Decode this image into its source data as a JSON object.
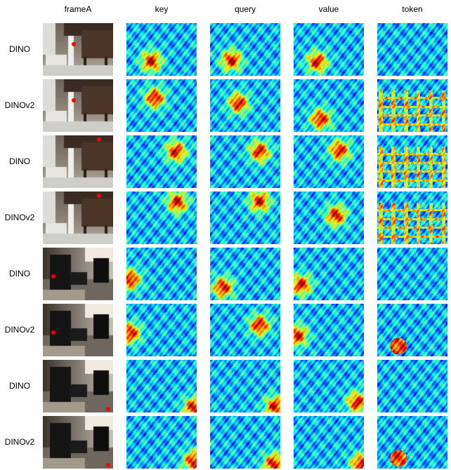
{
  "columns": [
    "frameA",
    "key",
    "query",
    "value",
    "token"
  ],
  "rows": [
    {
      "label": "DINO",
      "scene": "kitchen",
      "point": {
        "u": 0.44,
        "v": 0.4
      },
      "hot": [
        [
          0.35,
          0.72
        ],
        [
          0.3,
          0.7
        ],
        [
          0.33,
          0.73
        ]
      ],
      "tok": "uniform"
    },
    {
      "label": "DINOv2",
      "scene": "kitchen",
      "point": {
        "u": 0.44,
        "v": 0.4
      },
      "hot": [
        [
          0.4,
          0.35
        ],
        [
          0.4,
          0.45
        ],
        [
          0.38,
          0.75
        ]
      ],
      "tok": "chairs"
    },
    {
      "label": "DINO",
      "scene": "kitchen",
      "point": {
        "u": 0.8,
        "v": 0.08
      },
      "hot": [
        [
          0.7,
          0.3
        ],
        [
          0.7,
          0.3
        ],
        [
          0.65,
          0.28
        ]
      ],
      "tok": "chairs"
    },
    {
      "label": "DINOv2",
      "scene": "kitchen",
      "point": {
        "u": 0.8,
        "v": 0.08
      },
      "hot": [
        [
          0.72,
          0.2
        ],
        [
          0.7,
          0.18
        ],
        [
          0.6,
          0.45
        ]
      ],
      "tok": "chairs"
    },
    {
      "label": "DINO",
      "scene": "office",
      "point": {
        "u": 0.15,
        "v": 0.55
      },
      "hot": [
        [
          0.05,
          0.6
        ],
        [
          0.18,
          0.75
        ],
        [
          0.1,
          0.7
        ]
      ],
      "tok": "office"
    },
    {
      "label": "DINOv2",
      "scene": "office",
      "point": {
        "u": 0.15,
        "v": 0.55
      },
      "hot": [
        [
          0.05,
          0.55
        ],
        [
          0.7,
          0.4
        ],
        [
          0.05,
          0.6
        ]
      ],
      "tok": "bag"
    },
    {
      "label": "DINO",
      "scene": "office",
      "point": {
        "u": 0.93,
        "v": 0.93
      },
      "hot": [
        [
          0.95,
          0.9
        ],
        [
          0.92,
          0.88
        ],
        [
          0.9,
          0.8
        ]
      ],
      "tok": "office"
    },
    {
      "label": "DINOv2",
      "scene": "office",
      "point": {
        "u": 0.93,
        "v": 0.93
      },
      "hot": [
        [
          0.95,
          0.85
        ],
        [
          0.9,
          0.9
        ],
        [
          0.95,
          0.9
        ]
      ],
      "tok": "bag"
    }
  ]
}
